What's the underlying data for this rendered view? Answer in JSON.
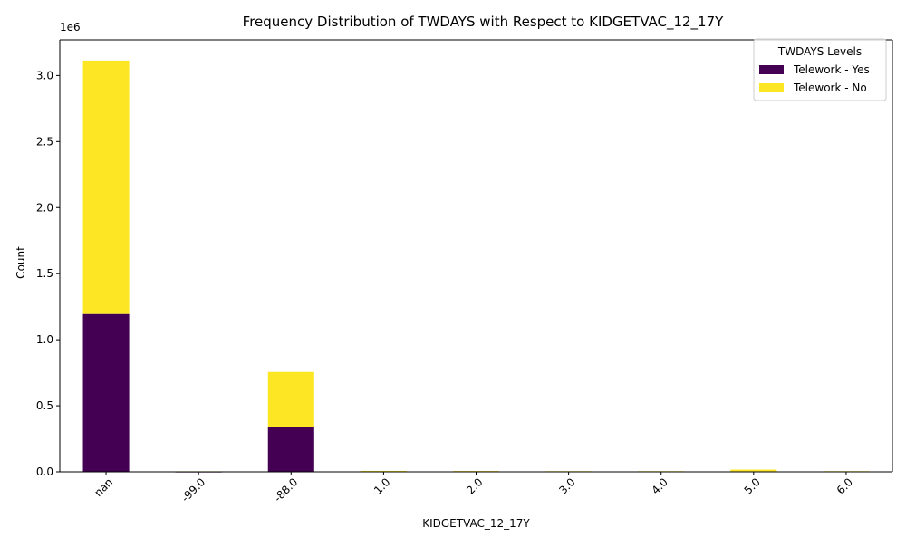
{
  "chart_data": {
    "type": "bar",
    "stacked": true,
    "title": "Frequency Distribution of TWDAYS with Respect to KIDGETVAC_12_17Y",
    "xlabel": "KIDGETVAC_12_17Y",
    "ylabel": "Count",
    "y_offset_text": "1e6",
    "categories": [
      "nan",
      "-99.0",
      "-88.0",
      "1.0",
      "2.0",
      "3.0",
      "4.0",
      "5.0",
      "6.0"
    ],
    "series": [
      {
        "name": "Telework - Yes",
        "color": "#440154",
        "values": [
          1195000,
          1000,
          338000,
          5000,
          4000,
          3000,
          3000,
          4000,
          3000
        ]
      },
      {
        "name": "Telework - No",
        "color": "#fde725",
        "values": [
          1918000,
          3000,
          418000,
          2000,
          2000,
          2000,
          2000,
          13000,
          2000
        ]
      }
    ],
    "ylim": [
      0,
      3270000
    ],
    "yticks": [
      0,
      500000,
      1000000,
      1500000,
      2000000,
      2500000,
      3000000
    ],
    "ytick_labels": [
      "0.0",
      "0.5",
      "1.0",
      "1.5",
      "2.0",
      "2.5",
      "3.0"
    ],
    "legend": {
      "title": "TWDAYS Levels",
      "position": "top-right"
    },
    "grid": false
  }
}
